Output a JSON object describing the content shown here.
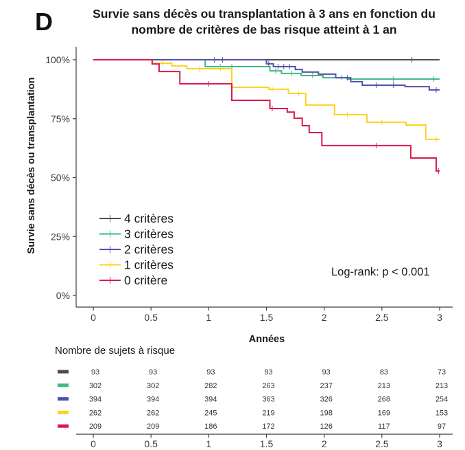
{
  "chart_data": {
    "type": "line",
    "step": true,
    "panel_label": "D",
    "title": [
      "Survie sans décès ou transplantation à 3 ans en fonction du",
      "nombre de critères de bas risque atteint à 1 an"
    ],
    "xlabel": "Années",
    "ylabel": "Survie sans décès ou transplantation",
    "xlim": [
      0,
      3
    ],
    "ylim": [
      0,
      100
    ],
    "x_ticks": [
      0,
      0.5,
      1,
      1.5,
      2,
      2.5,
      3
    ],
    "x_tick_labels": [
      "0",
      "0.5",
      "1",
      "1.5",
      "2",
      "2.5",
      "3"
    ],
    "y_ticks": [
      100,
      75,
      50,
      25,
      0
    ],
    "y_tick_labels": [
      "100%",
      "75%",
      "50%",
      "25%",
      "0%"
    ],
    "grid": false,
    "legend_position": "bottom-left",
    "annotation": "Log-rank: p < 0.001",
    "series": [
      {
        "name": "4 critères",
        "color": "#4d4d4d",
        "x": [
          0
        ],
        "y": [
          100
        ],
        "censor_x": [
          2.76
        ]
      },
      {
        "name": "3 critères",
        "color": "#3cba82",
        "x": [
          0,
          0.97,
          1.53,
          1.63,
          1.8,
          1.99,
          2.2
        ],
        "y": [
          100,
          97.1,
          95.3,
          94.2,
          93.3,
          92.4,
          91.8
        ],
        "censor_x": [
          1.1,
          1.2,
          1.58,
          1.72,
          1.9,
          2.15,
          2.6,
          2.95
        ]
      },
      {
        "name": "2 critères",
        "color": "#5050b0",
        "x": [
          0,
          1.5,
          1.56,
          1.75,
          1.81,
          1.95,
          2.1,
          2.23,
          2.33,
          2.7,
          2.91
        ],
        "y": [
          100,
          98.3,
          97.1,
          95.9,
          94.8,
          93.9,
          92.4,
          90.7,
          89.2,
          88.6,
          87.2
        ],
        "censor_x": [
          1.05,
          1.12,
          1.52,
          1.6,
          1.65,
          1.7,
          2.2,
          2.45,
          2.6,
          2.97
        ]
      },
      {
        "name": "1 critères",
        "color": "#fdd21f",
        "x": [
          0,
          0.51,
          0.68,
          0.81,
          1.2,
          1.52,
          1.69,
          1.84,
          2.09,
          2.37,
          2.71,
          2.88
        ],
        "y": [
          100,
          98.5,
          97.4,
          96.2,
          88.3,
          87.5,
          85.7,
          80.8,
          76.7,
          73.5,
          72.3,
          66.2
        ],
        "censor_x": [
          0.6,
          0.92,
          1.1,
          1.55,
          1.78,
          2.2,
          2.5,
          2.97
        ]
      },
      {
        "name": "0 critère",
        "color": "#d81b4c",
        "x": [
          0,
          0.51,
          0.57,
          0.75,
          1.2,
          1.53,
          1.68,
          1.74,
          1.81,
          1.87,
          1.98,
          2.75,
          2.97
        ],
        "y": [
          100,
          98.2,
          95.0,
          89.8,
          82.8,
          79.3,
          77.8,
          75.2,
          72.0,
          69.1,
          63.6,
          58.3,
          52.8
        ],
        "censor_x": [
          1.0,
          1.55,
          2.45,
          2.99
        ]
      }
    ]
  },
  "risk_table": {
    "title": "Nombre de sujets à risque",
    "rows": [
      {
        "values": [
          93,
          93,
          93,
          93,
          93,
          83,
          73
        ]
      },
      {
        "values": [
          302,
          302,
          282,
          263,
          237,
          213,
          213
        ]
      },
      {
        "values": [
          394,
          394,
          394,
          363,
          326,
          268,
          254
        ]
      },
      {
        "values": [
          262,
          262,
          245,
          219,
          198,
          169,
          153
        ]
      },
      {
        "values": [
          209,
          209,
          186,
          172,
          126,
          117,
          97
        ]
      }
    ]
  }
}
